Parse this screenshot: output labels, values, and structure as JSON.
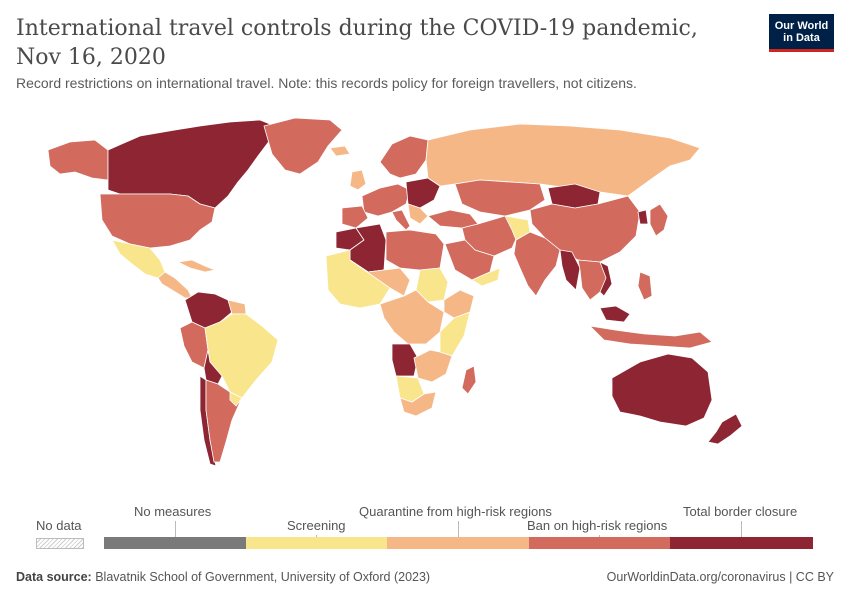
{
  "header": {
    "title": "International travel controls during the COVID-19 pandemic, Nov 16, 2020",
    "subtitle": "Record restrictions on international travel. Note: this records policy for foreign travellers, not citizens.",
    "logo_line1": "Our World",
    "logo_line2": "in Data"
  },
  "colors": {
    "no_measures": "#7a7a7a",
    "screening": "#f8e58c",
    "quarantine": "#f6b787",
    "ban": "#d26a5e",
    "closure": "#8e2532",
    "no_data": "#e5e5e5",
    "ocean": "#ffffff",
    "border": "#ffffff"
  },
  "legend": {
    "no_data_label": "No data",
    "bins": [
      {
        "label": "No measures",
        "color": "#7a7a7a"
      },
      {
        "label": "Screening",
        "color": "#f8e58c"
      },
      {
        "label": "Quarantine from high-risk regions",
        "color": "#f6b787"
      },
      {
        "label": "Ban on high-risk regions",
        "color": "#d26a5e"
      },
      {
        "label": "Total border closure",
        "color": "#8e2532"
      }
    ]
  },
  "footer": {
    "source_prefix": "Data source:",
    "source_text": "Blavatnik School of Government, University of Oxford (2023)",
    "right_text": "OurWorldinData.org/coronavirus | CC BY"
  }
}
